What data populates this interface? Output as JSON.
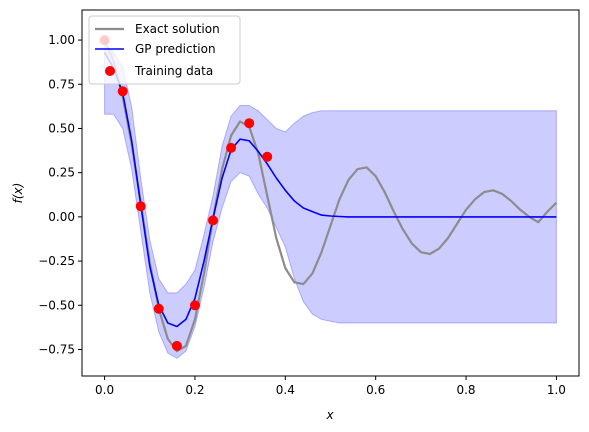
{
  "chart_data": {
    "type": "line",
    "xlabel": "x",
    "ylabel": "f(x)",
    "xlim": [
      -0.05,
      1.05
    ],
    "ylim": [
      -0.9,
      1.17
    ],
    "xticks": [
      "0.0",
      "0.2",
      "0.4",
      "0.6",
      "0.8",
      "1.0"
    ],
    "yticks": [
      "-0.75",
      "-0.50",
      "-0.25",
      "0.00",
      "0.25",
      "0.50",
      "0.75",
      "1.00"
    ],
    "grid": false,
    "legend": "top-left",
    "series": [
      {
        "name": "Exact solution",
        "kind": "line",
        "color": "#8c8c8c",
        "x": [
          0,
          0.02,
          0.04,
          0.06,
          0.08,
          0.1,
          0.12,
          0.14,
          0.16,
          0.18,
          0.2,
          0.22,
          0.24,
          0.26,
          0.28,
          0.3,
          0.32,
          0.34,
          0.36,
          0.38,
          0.4,
          0.42,
          0.44,
          0.46,
          0.48,
          0.5,
          0.52,
          0.54,
          0.56,
          0.58,
          0.6,
          0.62,
          0.64,
          0.66,
          0.68,
          0.7,
          0.72,
          0.74,
          0.76,
          0.78,
          0.8,
          0.82,
          0.84,
          0.86,
          0.88,
          0.9,
          0.92,
          0.94,
          0.96,
          0.98,
          1.0
        ],
        "y": [
          1.0,
          0.88,
          0.68,
          0.41,
          0.08,
          -0.26,
          -0.52,
          -0.69,
          -0.76,
          -0.73,
          -0.58,
          -0.32,
          -0.01,
          0.27,
          0.46,
          0.54,
          0.51,
          0.36,
          0.12,
          -0.12,
          -0.29,
          -0.37,
          -0.38,
          -0.32,
          -0.2,
          -0.05,
          0.1,
          0.21,
          0.27,
          0.28,
          0.23,
          0.14,
          0.03,
          -0.07,
          -0.15,
          -0.2,
          -0.21,
          -0.18,
          -0.12,
          -0.04,
          0.04,
          0.1,
          0.14,
          0.15,
          0.13,
          0.09,
          0.04,
          -0.0,
          -0.03,
          0.03,
          0.08
        ]
      },
      {
        "name": "GP prediction",
        "kind": "line",
        "color": "#0000ff",
        "x": [
          0,
          0.02,
          0.04,
          0.06,
          0.08,
          0.1,
          0.12,
          0.14,
          0.16,
          0.18,
          0.2,
          0.22,
          0.24,
          0.26,
          0.28,
          0.3,
          0.32,
          0.34,
          0.36,
          0.38,
          0.4,
          0.42,
          0.44,
          0.46,
          0.48,
          0.5,
          0.52,
          0.54,
          0.56,
          0.6,
          0.7,
          0.8,
          0.9,
          1.0
        ],
        "y": [
          0.93,
          0.84,
          0.7,
          0.43,
          0.07,
          -0.28,
          -0.5,
          -0.6,
          -0.62,
          -0.58,
          -0.46,
          -0.25,
          -0.01,
          0.22,
          0.38,
          0.44,
          0.43,
          0.37,
          0.3,
          0.22,
          0.15,
          0.09,
          0.05,
          0.03,
          0.01,
          0.005,
          0.002,
          0.0,
          0.0,
          0.0,
          0.0,
          0.0,
          0.0,
          0.0
        ],
        "band": {
          "color": "#0000ff",
          "upper": [
            0.98,
            0.93,
            0.85,
            0.62,
            0.22,
            -0.13,
            -0.35,
            -0.43,
            -0.43,
            -0.38,
            -0.3,
            -0.1,
            0.12,
            0.4,
            0.57,
            0.63,
            0.63,
            0.6,
            0.55,
            0.5,
            0.48,
            0.53,
            0.57,
            0.59,
            0.6,
            0.6,
            0.6,
            0.6,
            0.6,
            0.6,
            0.6,
            0.6,
            0.6,
            0.6
          ],
          "lower": [
            0.58,
            0.58,
            0.5,
            0.27,
            -0.08,
            -0.43,
            -0.65,
            -0.77,
            -0.8,
            -0.76,
            -0.62,
            -0.4,
            -0.14,
            0.05,
            0.2,
            0.25,
            0.23,
            0.13,
            0.05,
            -0.06,
            -0.17,
            -0.35,
            -0.48,
            -0.55,
            -0.58,
            -0.59,
            -0.6,
            -0.6,
            -0.6,
            -0.6,
            -0.6,
            -0.6,
            -0.6,
            -0.6
          ]
        }
      },
      {
        "name": "Training data",
        "kind": "scatter",
        "color": "#ff0000",
        "x": [
          0.0,
          0.04,
          0.08,
          0.12,
          0.16,
          0.2,
          0.24,
          0.28,
          0.32,
          0.36
        ],
        "y": [
          1.0,
          0.71,
          0.06,
          -0.52,
          -0.73,
          -0.5,
          -0.02,
          0.39,
          0.53,
          0.34
        ]
      }
    ]
  }
}
